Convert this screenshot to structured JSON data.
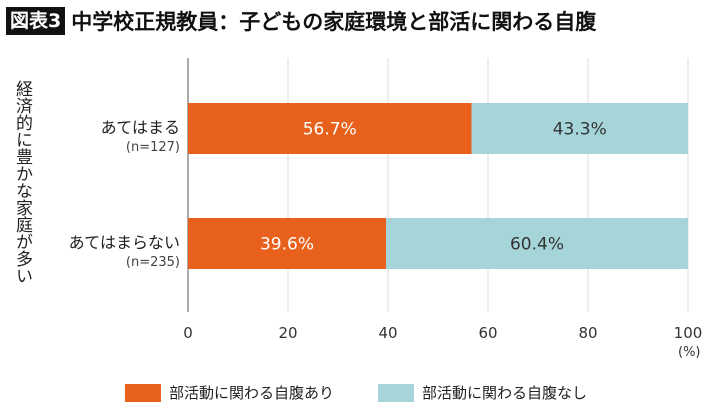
{
  "title": {
    "badge": "図表3",
    "text": "中学校正規教員：子どもの家庭環境と部活に関わる自腹"
  },
  "chart_data": {
    "type": "bar",
    "orientation": "horizontal",
    "stacked": true,
    "group_label": "経済的に豊かな家庭が多い",
    "categories": [
      {
        "label": "あてはまる",
        "n": "(n=127)"
      },
      {
        "label": "あてはまらない",
        "n": "(n=235)"
      }
    ],
    "series": [
      {
        "name": "部活動に関わる自腹あり",
        "color": "#E8611C",
        "values": [
          56.7,
          39.6
        ],
        "labels": [
          "56.7%",
          "39.6%"
        ]
      },
      {
        "name": "部活動に関わる自腹なし",
        "color": "#A6D5D9",
        "values": [
          43.3,
          60.4
        ],
        "labels": [
          "43.3%",
          "60.4%"
        ]
      }
    ],
    "xlim": [
      0,
      100
    ],
    "xticks": [
      "0",
      "20",
      "40",
      "60",
      "80",
      "100"
    ],
    "xunit": "(%)",
    "grid": true,
    "legend_position": "bottom"
  }
}
